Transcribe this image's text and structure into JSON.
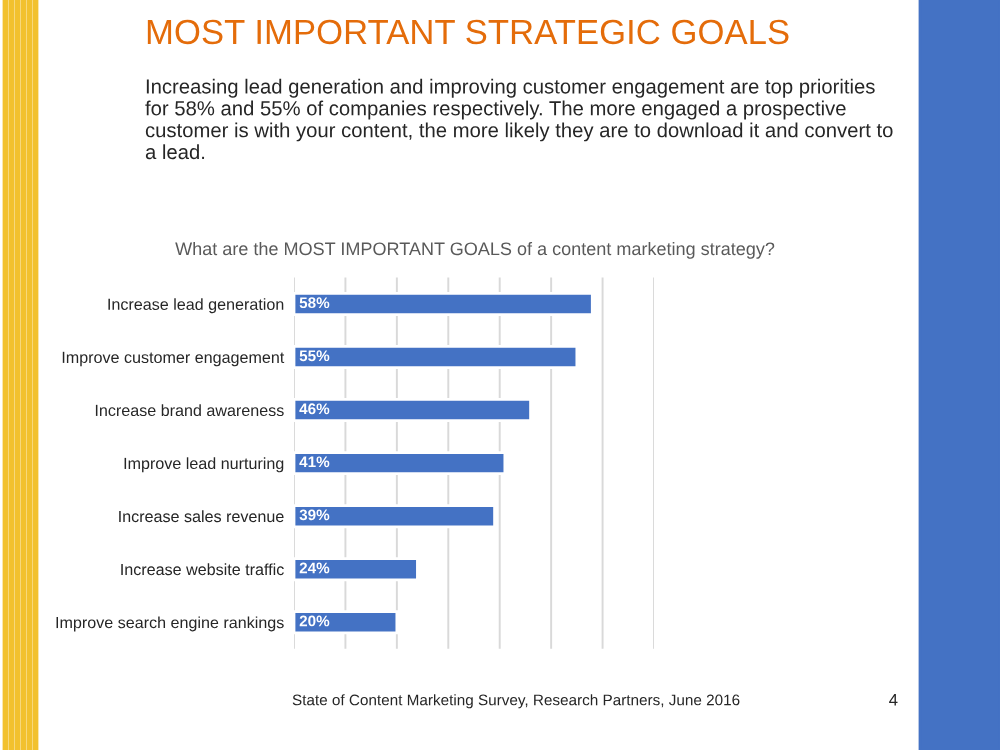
{
  "chart_data": {
    "type": "bar",
    "orientation": "horizontal",
    "title": "MOST IMPORTANT STRATEGIC GOALS",
    "subtitle": "Increasing lead generation and improving customer engagement are top priorities for 58% and 55% of companies respectively. The more engaged a prospective customer is with your content, the more likely they are to download it and convert to a lead.",
    "xlabel": "What are the MOST IMPORTANT GOALS of a content marketing strategy?",
    "categories": [
      "Increase lead generation",
      "Improve customer engagement",
      "Increase brand awareness",
      "Improve lead nurturing",
      "Increase sales revenue",
      "Increase website traffic",
      "Improve search engine rankings"
    ],
    "values": [
      58,
      55,
      46,
      41,
      39,
      24,
      20
    ],
    "value_labels": [
      "58%",
      "55%",
      "46%",
      "41%",
      "39%",
      "24%",
      "20%"
    ],
    "color": "#4472c4",
    "xlim": [
      0,
      70
    ],
    "xticks": [
      {
        "value": 0,
        "label": null
      },
      {
        "value": 10,
        "label": null
      },
      {
        "value": 20,
        "label": null
      },
      {
        "value": 30,
        "label": null
      },
      {
        "value": 40,
        "label": null
      },
      {
        "value": 50,
        "label": null
      },
      {
        "value": 60,
        "label": null
      },
      {
        "value": 70,
        "label": null
      }
    ],
    "tick_labels": "y",
    "grid": "x",
    "annotations": [
      "State of Content Marketing Survey, Research Partners, June 2016",
      "4"
    ]
  }
}
